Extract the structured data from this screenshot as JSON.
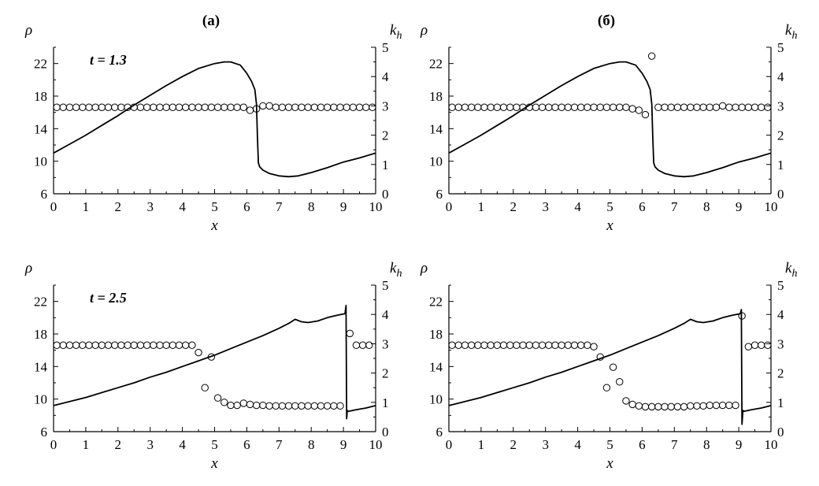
{
  "panel_labels": [
    "(a)",
    "(б)"
  ],
  "chart_data": [
    {
      "type": "line+scatter",
      "column": 0,
      "row": 0,
      "time_label": "t = 1.3",
      "xlabel": "x",
      "ylabel": "ρ",
      "y2label": "k_h",
      "xlim": [
        0,
        10
      ],
      "ylim": [
        6,
        24
      ],
      "y2lim": [
        0,
        5
      ],
      "xticks": [
        0,
        1,
        2,
        3,
        4,
        5,
        6,
        7,
        8,
        9,
        10
      ],
      "yticks": [
        6,
        10,
        14,
        18,
        22
      ],
      "y2ticks": [
        0,
        1,
        2,
        3,
        4,
        5
      ],
      "line": {
        "axis": "left",
        "x": [
          0,
          0.5,
          1,
          1.5,
          2,
          2.5,
          3,
          3.5,
          4,
          4.5,
          5,
          5.3,
          5.5,
          5.8,
          6.0,
          6.15,
          6.25,
          6.3,
          6.33,
          6.36,
          6.4,
          6.5,
          6.7,
          7.0,
          7.3,
          7.6,
          8,
          8.5,
          9,
          9.5,
          10
        ],
        "y": [
          11.0,
          12.1,
          13.2,
          14.4,
          15.6,
          16.9,
          18.1,
          19.3,
          20.4,
          21.4,
          22.0,
          22.2,
          22.2,
          21.8,
          20.8,
          19.8,
          18.8,
          17.0,
          13.0,
          9.8,
          9.3,
          8.9,
          8.5,
          8.2,
          8.1,
          8.2,
          8.6,
          9.2,
          9.9,
          10.4,
          11.0
        ]
      },
      "markers": {
        "axis": "right",
        "x": [
          0.1,
          0.3,
          0.5,
          0.7,
          0.9,
          1.1,
          1.3,
          1.5,
          1.7,
          1.9,
          2.1,
          2.3,
          2.5,
          2.7,
          2.9,
          3.1,
          3.3,
          3.5,
          3.7,
          3.9,
          4.1,
          4.3,
          4.5,
          4.7,
          4.9,
          5.1,
          5.3,
          5.5,
          5.7,
          5.9,
          6.1,
          6.3,
          6.5,
          6.7,
          6.9,
          7.1,
          7.3,
          7.5,
          7.7,
          7.9,
          8.1,
          8.3,
          8.5,
          8.7,
          8.9,
          9.1,
          9.3,
          9.5,
          9.7,
          9.9
        ],
        "y": [
          2.95,
          2.95,
          2.95,
          2.95,
          2.95,
          2.95,
          2.95,
          2.95,
          2.95,
          2.95,
          2.95,
          2.95,
          2.95,
          2.95,
          2.95,
          2.95,
          2.95,
          2.95,
          2.95,
          2.95,
          2.95,
          2.95,
          2.95,
          2.95,
          2.95,
          2.95,
          2.95,
          2.95,
          2.95,
          2.95,
          2.85,
          2.9,
          3.0,
          3.0,
          2.95,
          2.95,
          2.95,
          2.95,
          2.95,
          2.95,
          2.95,
          2.95,
          2.95,
          2.95,
          2.95,
          2.95,
          2.95,
          2.95,
          2.95,
          2.95
        ]
      }
    },
    {
      "type": "line+scatter",
      "column": 1,
      "row": 0,
      "time_label": "",
      "xlabel": "x",
      "ylabel": "ρ",
      "y2label": "k_h",
      "xlim": [
        0,
        10
      ],
      "ylim": [
        6,
        24
      ],
      "y2lim": [
        0,
        5
      ],
      "xticks": [
        0,
        1,
        2,
        3,
        4,
        5,
        6,
        7,
        8,
        9,
        10
      ],
      "yticks": [
        6,
        10,
        14,
        18,
        22
      ],
      "y2ticks": [
        0,
        1,
        2,
        3,
        4,
        5
      ],
      "line": {
        "axis": "left",
        "x": [
          0,
          0.5,
          1,
          1.5,
          2,
          2.5,
          3,
          3.5,
          4,
          4.5,
          5,
          5.3,
          5.5,
          5.8,
          6.0,
          6.15,
          6.25,
          6.3,
          6.33,
          6.36,
          6.4,
          6.5,
          6.7,
          7.0,
          7.3,
          7.6,
          8,
          8.5,
          9,
          9.5,
          10
        ],
        "y": [
          11.0,
          12.1,
          13.2,
          14.4,
          15.6,
          16.9,
          18.1,
          19.3,
          20.4,
          21.4,
          22.0,
          22.2,
          22.2,
          21.8,
          20.8,
          19.8,
          18.8,
          17.0,
          13.0,
          9.8,
          9.3,
          8.9,
          8.5,
          8.2,
          8.1,
          8.2,
          8.6,
          9.2,
          9.9,
          10.4,
          11.0
        ]
      },
      "markers": {
        "axis": "right",
        "x": [
          0.1,
          0.3,
          0.5,
          0.7,
          0.9,
          1.1,
          1.3,
          1.5,
          1.7,
          1.9,
          2.1,
          2.3,
          2.5,
          2.7,
          2.9,
          3.1,
          3.3,
          3.5,
          3.7,
          3.9,
          4.1,
          4.3,
          4.5,
          4.7,
          4.9,
          5.1,
          5.3,
          5.5,
          5.7,
          5.9,
          6.1,
          6.3,
          6.5,
          6.7,
          6.9,
          7.1,
          7.3,
          7.5,
          7.7,
          7.9,
          8.1,
          8.3,
          8.5,
          8.7,
          8.9,
          9.1,
          9.3,
          9.5,
          9.7,
          9.9
        ],
        "y": [
          2.95,
          2.95,
          2.95,
          2.95,
          2.95,
          2.95,
          2.95,
          2.95,
          2.95,
          2.95,
          2.95,
          2.95,
          2.95,
          2.95,
          2.95,
          2.95,
          2.95,
          2.95,
          2.95,
          2.95,
          2.95,
          2.95,
          2.95,
          2.95,
          2.95,
          2.95,
          2.95,
          2.95,
          2.9,
          2.85,
          2.7,
          4.7,
          2.95,
          2.95,
          2.95,
          2.95,
          2.95,
          2.95,
          2.95,
          2.95,
          2.95,
          2.95,
          3.0,
          2.95,
          2.95,
          2.95,
          2.95,
          2.95,
          2.95,
          2.95
        ]
      }
    },
    {
      "type": "line+scatter",
      "column": 0,
      "row": 1,
      "time_label": "t = 2.5",
      "xlabel": "x",
      "ylabel": "ρ",
      "y2label": "k_h",
      "xlim": [
        0,
        10
      ],
      "ylim": [
        6,
        24
      ],
      "y2lim": [
        0,
        5
      ],
      "xticks": [
        0,
        1,
        2,
        3,
        4,
        5,
        6,
        7,
        8,
        9,
        10
      ],
      "yticks": [
        6,
        10,
        14,
        18,
        22
      ],
      "y2ticks": [
        0,
        1,
        2,
        3,
        4,
        5
      ],
      "line": {
        "axis": "left",
        "x": [
          0,
          0.5,
          1,
          1.5,
          2,
          2.5,
          3,
          3.5,
          4,
          4.5,
          5,
          5.5,
          6,
          6.5,
          7,
          7.3,
          7.5,
          7.7,
          7.9,
          8.2,
          8.5,
          8.8,
          9.05,
          9.08,
          9.1,
          9.12,
          9.15,
          9.4,
          9.7,
          10
        ],
        "y": [
          9.2,
          9.7,
          10.2,
          10.8,
          11.4,
          12.0,
          12.7,
          13.3,
          14.0,
          14.7,
          15.4,
          16.2,
          17.0,
          17.8,
          18.7,
          19.3,
          19.8,
          19.5,
          19.4,
          19.6,
          20.0,
          20.3,
          20.5,
          21.5,
          7.6,
          8.6,
          8.5,
          8.7,
          8.9,
          9.2
        ]
      },
      "markers": {
        "axis": "right",
        "x": [
          0.1,
          0.3,
          0.5,
          0.7,
          0.9,
          1.1,
          1.3,
          1.5,
          1.7,
          1.9,
          2.1,
          2.3,
          2.5,
          2.7,
          2.9,
          3.1,
          3.3,
          3.5,
          3.7,
          3.9,
          4.1,
          4.3,
          4.5,
          4.7,
          4.9,
          5.1,
          5.3,
          5.5,
          5.7,
          5.9,
          6.1,
          6.3,
          6.5,
          6.7,
          6.9,
          7.1,
          7.3,
          7.5,
          7.7,
          7.9,
          8.1,
          8.3,
          8.5,
          8.7,
          8.9,
          9.2,
          9.4,
          9.6,
          9.8
        ],
        "y": [
          2.95,
          2.95,
          2.95,
          2.95,
          2.95,
          2.95,
          2.95,
          2.95,
          2.95,
          2.95,
          2.95,
          2.95,
          2.95,
          2.95,
          2.95,
          2.95,
          2.95,
          2.95,
          2.95,
          2.95,
          2.95,
          2.95,
          2.7,
          1.5,
          2.55,
          1.15,
          1.0,
          0.9,
          0.9,
          0.97,
          0.93,
          0.9,
          0.9,
          0.88,
          0.88,
          0.88,
          0.88,
          0.88,
          0.88,
          0.88,
          0.88,
          0.88,
          0.88,
          0.88,
          0.88,
          3.35,
          2.95,
          2.95,
          2.95
        ]
      }
    },
    {
      "type": "line+scatter",
      "column": 1,
      "row": 1,
      "time_label": "",
      "xlabel": "x",
      "ylabel": "ρ",
      "y2label": "k_h",
      "xlim": [
        0,
        10
      ],
      "ylim": [
        6,
        24
      ],
      "y2lim": [
        0,
        5
      ],
      "xticks": [
        0,
        1,
        2,
        3,
        4,
        5,
        6,
        7,
        8,
        9,
        10
      ],
      "yticks": [
        6,
        10,
        14,
        18,
        22
      ],
      "y2ticks": [
        0,
        1,
        2,
        3,
        4,
        5
      ],
      "line": {
        "axis": "left",
        "x": [
          0,
          0.5,
          1,
          1.5,
          2,
          2.5,
          3,
          3.5,
          4,
          4.5,
          5,
          5.5,
          6,
          6.5,
          7,
          7.3,
          7.5,
          7.7,
          7.9,
          8.2,
          8.5,
          8.8,
          9.05,
          9.08,
          9.1,
          9.13,
          9.16,
          9.4,
          9.7,
          10
        ],
        "y": [
          9.2,
          9.7,
          10.2,
          10.8,
          11.4,
          12.0,
          12.7,
          13.3,
          14.0,
          14.7,
          15.4,
          16.2,
          17.0,
          17.8,
          18.7,
          19.3,
          19.8,
          19.5,
          19.4,
          19.6,
          20.0,
          20.3,
          20.5,
          21.0,
          6.9,
          8.6,
          8.5,
          8.7,
          8.9,
          9.2
        ]
      },
      "markers": {
        "axis": "right",
        "x": [
          0.1,
          0.3,
          0.5,
          0.7,
          0.9,
          1.1,
          1.3,
          1.5,
          1.7,
          1.9,
          2.1,
          2.3,
          2.5,
          2.7,
          2.9,
          3.1,
          3.3,
          3.5,
          3.7,
          3.9,
          4.1,
          4.3,
          4.5,
          4.7,
          4.9,
          5.1,
          5.3,
          5.5,
          5.7,
          5.9,
          6.1,
          6.3,
          6.5,
          6.7,
          6.9,
          7.1,
          7.3,
          7.5,
          7.7,
          7.9,
          8.1,
          8.3,
          8.5,
          8.7,
          8.9,
          9.1,
          9.3,
          9.5,
          9.7,
          9.9
        ],
        "y": [
          2.95,
          2.95,
          2.95,
          2.95,
          2.95,
          2.95,
          2.95,
          2.95,
          2.95,
          2.95,
          2.95,
          2.95,
          2.95,
          2.95,
          2.95,
          2.95,
          2.95,
          2.95,
          2.95,
          2.95,
          2.95,
          2.95,
          2.9,
          2.55,
          1.5,
          2.2,
          1.7,
          1.05,
          0.93,
          0.88,
          0.85,
          0.85,
          0.85,
          0.85,
          0.85,
          0.85,
          0.85,
          0.88,
          0.88,
          0.88,
          0.9,
          0.9,
          0.9,
          0.9,
          0.9,
          3.95,
          2.9,
          2.95,
          2.95,
          2.95
        ]
      }
    }
  ]
}
